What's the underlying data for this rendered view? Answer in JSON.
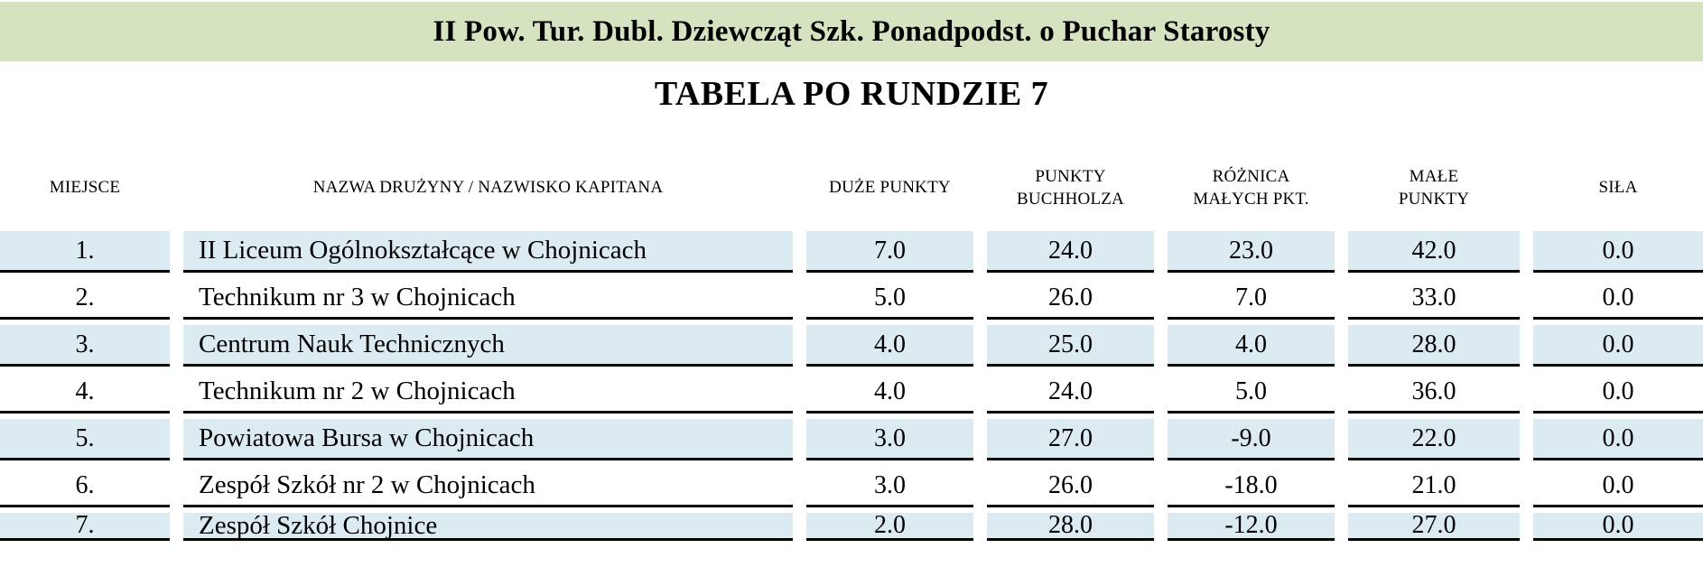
{
  "banner": {
    "title": "II Pow. Tur. Dubl. Dziewcząt Szk. Ponadpodst. o Puchar Starosty",
    "background_color": "#d6e3c1"
  },
  "subtitle": "TABELA PO RUNDZIE 7",
  "table": {
    "stripe_color": "#dcebf2",
    "border_color": "#000000",
    "columns": [
      {
        "key": "miejsce",
        "lines": [
          "MIEJSCE"
        ]
      },
      {
        "key": "nazwa-druzyny",
        "lines": [
          "NAZWA DRUŻYNY / NAZWISKO KAPITANA"
        ]
      },
      {
        "key": "duze-punkty",
        "lines": [
          "DUŻE PUNKTY"
        ]
      },
      {
        "key": "punkty-buchholza",
        "lines": [
          "PUNKTY",
          "BUCHHOLZA"
        ]
      },
      {
        "key": "roznica-malych-pkt",
        "lines": [
          "RÓŻNICA",
          "MAŁYCH PKT."
        ]
      },
      {
        "key": "male-punkty",
        "lines": [
          "MAŁE",
          "PUNKTY"
        ]
      },
      {
        "key": "sila",
        "lines": [
          "SIŁA"
        ]
      }
    ],
    "rows": [
      {
        "place": "1.",
        "team": "II Liceum Ogólnokształcące w Chojnicach",
        "values": [
          "7.0",
          "24.0",
          "23.0",
          "42.0",
          "0.0"
        ]
      },
      {
        "place": "2.",
        "team": "Technikum nr 3 w Chojnicach",
        "values": [
          "5.0",
          "26.0",
          "7.0",
          "33.0",
          "0.0"
        ]
      },
      {
        "place": "3.",
        "team": "Centrum Nauk Technicznych",
        "values": [
          "4.0",
          "25.0",
          "4.0",
          "28.0",
          "0.0"
        ]
      },
      {
        "place": "4.",
        "team": "Technikum nr 2 w Chojnicach",
        "values": [
          "4.0",
          "24.0",
          "5.0",
          "36.0",
          "0.0"
        ]
      },
      {
        "place": "5.",
        "team": "Powiatowa Bursa w Chojnicach",
        "values": [
          "3.0",
          "27.0",
          "-9.0",
          "22.0",
          "0.0"
        ]
      },
      {
        "place": "6.",
        "team": "Zespół Szkół nr 2 w Chojnicach",
        "values": [
          "3.0",
          "26.0",
          "-18.0",
          "21.0",
          "0.0"
        ]
      },
      {
        "place": "7.",
        "team": "Zespół Szkół Chojnice",
        "values": [
          "2.0",
          "28.0",
          "-12.0",
          "27.0",
          "0.0"
        ]
      }
    ]
  }
}
